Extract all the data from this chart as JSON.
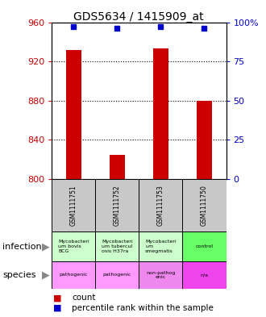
{
  "title": "GDS5634 / 1415909_at",
  "samples": [
    "GSM1111751",
    "GSM1111752",
    "GSM1111753",
    "GSM1111750"
  ],
  "counts": [
    932,
    825,
    933,
    880
  ],
  "percentile_ranks": [
    97,
    96,
    97,
    96
  ],
  "ylim_left": [
    800,
    960
  ],
  "ylim_right": [
    0,
    100
  ],
  "yticks_left": [
    800,
    840,
    880,
    920,
    960
  ],
  "yticks_right": [
    0,
    25,
    50,
    75,
    100
  ],
  "ytick_labels_right": [
    "0",
    "25",
    "50",
    "75",
    "100%"
  ],
  "bar_color": "#cc0000",
  "dot_color": "#0000cc",
  "infection_labels": [
    "Mycobacterium bovis BCG",
    "Mycobacterium tuberculosis H37ra",
    "Mycobacterium smegmatis",
    "control"
  ],
  "infection_colors": [
    "#ccffcc",
    "#ccffcc",
    "#ccffcc",
    "#66ff66"
  ],
  "species_labels": [
    "pathogenic",
    "pathogenic",
    "non-pathog\nenic",
    "n/a"
  ],
  "species_colors": [
    "#ff99ff",
    "#ff99ff",
    "#ee88ee",
    "#ee44ee"
  ],
  "legend_count_label": "count",
  "legend_percentile_label": "percentile rank within the sample",
  "header_bg": "#c8c8c8",
  "bar_base": 800,
  "bar_width": 0.35
}
